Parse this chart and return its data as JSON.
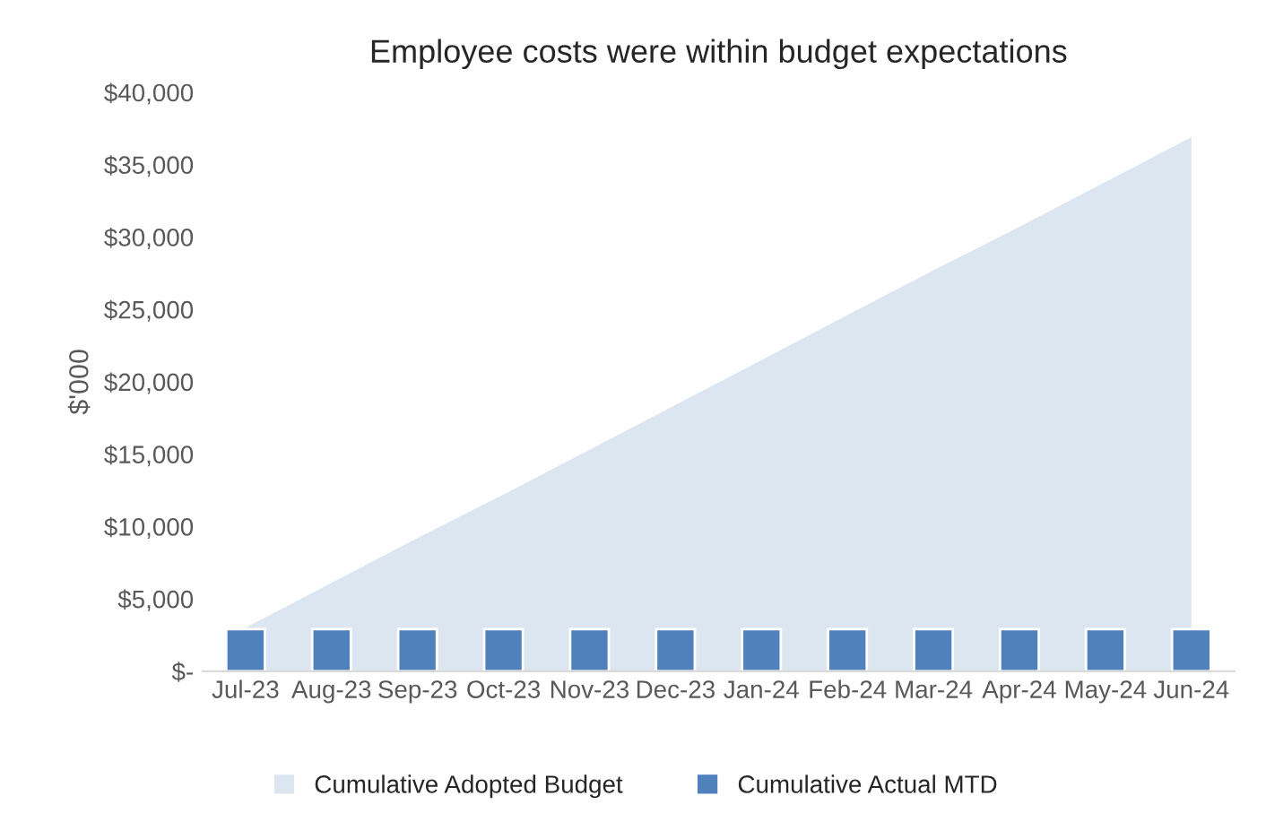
{
  "chart_data": {
    "type": "bar",
    "title": "Employee costs were within budget expectations",
    "ylabel": "$'000",
    "categories": [
      "Jul-23",
      "Aug-23",
      "Sep-23",
      "Oct-23",
      "Nov-23",
      "Dec-23",
      "Jan-24",
      "Feb-24",
      "Mar-24",
      "Apr-24",
      "May-24",
      "Jun-24"
    ],
    "series": [
      {
        "name": "Cumulative Adopted Budget",
        "type": "area",
        "color": "#dce6f1",
        "values": [
          3000,
          6100,
          9200,
          12200,
          15300,
          18400,
          21500,
          24600,
          27700,
          30700,
          33800,
          36900
        ]
      },
      {
        "name": "Cumulative Actual MTD",
        "color": "#4f81bd",
        "values": [
          2900,
          2900,
          2900,
          2900,
          2900,
          2900,
          2900,
          2900,
          2900,
          2900,
          2900,
          2900
        ]
      }
    ],
    "ylim": [
      0,
      40000
    ],
    "yticks": [
      {
        "value": 0,
        "label": "$-"
      },
      {
        "value": 5000,
        "label": "$5,000"
      },
      {
        "value": 10000,
        "label": "$10,000"
      },
      {
        "value": 15000,
        "label": "$15,000"
      },
      {
        "value": 20000,
        "label": "$20,000"
      },
      {
        "value": 25000,
        "label": "$25,000"
      },
      {
        "value": 30000,
        "label": "$30,000"
      },
      {
        "value": 35000,
        "label": "$35,000"
      },
      {
        "value": 40000,
        "label": "$40,000"
      }
    ],
    "grid": false,
    "legend": "bottom"
  }
}
